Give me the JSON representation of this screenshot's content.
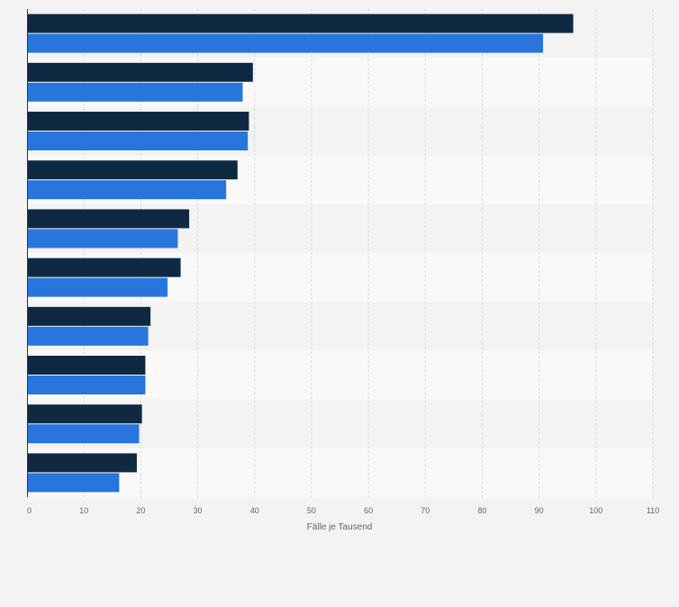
{
  "colors": {
    "background": "#f3f3f3",
    "row_band_dark": "#f3f3f3",
    "row_band_light": "#f9f9f9",
    "gridline": "#d9d9d9",
    "axis": "#333333",
    "tick_text": "#666666"
  },
  "chart_data": {
    "type": "bar",
    "orientation": "horizontal",
    "title": "",
    "xlabel": "Fälle je Tausend",
    "ylabel": "",
    "xlim": [
      0,
      110
    ],
    "x_ticks": [
      0,
      10,
      20,
      30,
      40,
      50,
      60,
      70,
      80,
      90,
      100,
      110
    ],
    "grid": true,
    "legend": "none",
    "categories": [
      "",
      "",
      "",
      "",
      "",
      "",
      "",
      "",
      "",
      ""
    ],
    "series": [
      {
        "color": "#0f2942",
        "values": [
          96,
          39.7,
          39,
          37,
          28.5,
          27,
          21.7,
          20.8,
          20.2,
          19.3
        ]
      },
      {
        "color": "#2775dd",
        "values": [
          90.7,
          37.9,
          38.8,
          35,
          26.5,
          24.7,
          21.3,
          20.8,
          19.7,
          16.2
        ]
      }
    ]
  }
}
